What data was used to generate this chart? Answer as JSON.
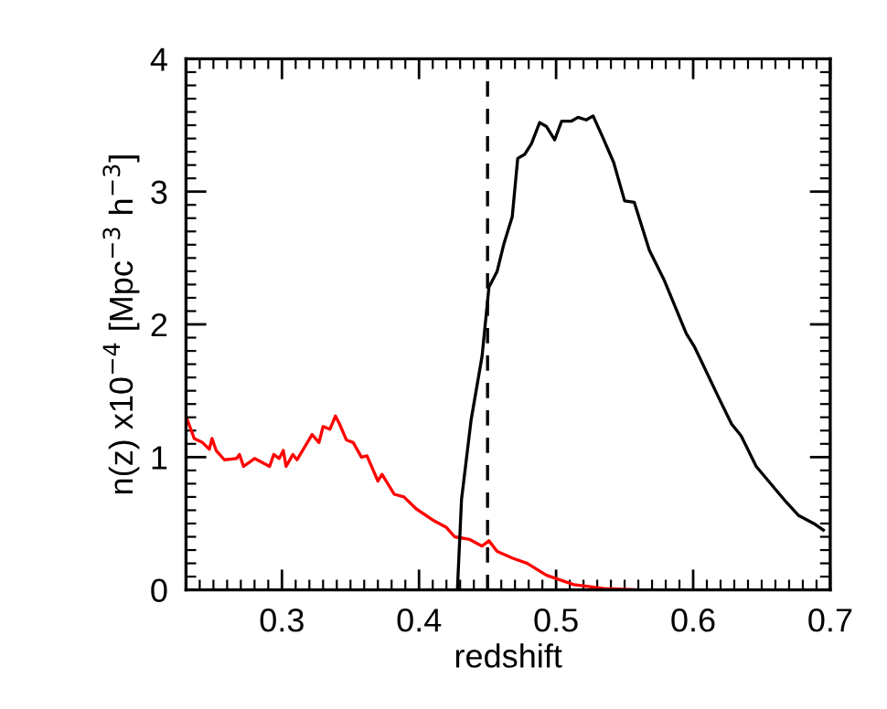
{
  "chart_data": {
    "type": "line",
    "xlabel": "redshift",
    "ylabel": "n(z) x10$^{−4}$ [Mpc$^{−3}$ h$^{−3}$]",
    "xlim": [
      0.23,
      0.7
    ],
    "ylim": [
      0,
      4
    ],
    "xticks": [
      {
        "value": 0.23,
        "label": null
      },
      {
        "value": 0.24,
        "label": null
      },
      {
        "value": 0.25,
        "label": null
      },
      {
        "value": 0.26,
        "label": null
      },
      {
        "value": 0.27,
        "label": null
      },
      {
        "value": 0.28,
        "label": null
      },
      {
        "value": 0.29,
        "label": null
      },
      {
        "value": 0.3,
        "label": "0.3"
      },
      {
        "value": 0.31,
        "label": null
      },
      {
        "value": 0.32,
        "label": null
      },
      {
        "value": 0.33,
        "label": null
      },
      {
        "value": 0.34,
        "label": null
      },
      {
        "value": 0.35,
        "label": null
      },
      {
        "value": 0.36,
        "label": null
      },
      {
        "value": 0.37,
        "label": null
      },
      {
        "value": 0.38,
        "label": null
      },
      {
        "value": 0.39,
        "label": null
      },
      {
        "value": 0.4,
        "label": "0.4"
      },
      {
        "value": 0.41,
        "label": null
      },
      {
        "value": 0.42,
        "label": null
      },
      {
        "value": 0.43,
        "label": null
      },
      {
        "value": 0.44,
        "label": null
      },
      {
        "value": 0.45,
        "label": null
      },
      {
        "value": 0.46,
        "label": null
      },
      {
        "value": 0.47,
        "label": null
      },
      {
        "value": 0.48,
        "label": null
      },
      {
        "value": 0.49,
        "label": null
      },
      {
        "value": 0.5,
        "label": "0.5"
      },
      {
        "value": 0.51,
        "label": null
      },
      {
        "value": 0.52,
        "label": null
      },
      {
        "value": 0.53,
        "label": null
      },
      {
        "value": 0.54,
        "label": null
      },
      {
        "value": 0.55,
        "label": null
      },
      {
        "value": 0.56,
        "label": null
      },
      {
        "value": 0.57,
        "label": null
      },
      {
        "value": 0.58,
        "label": null
      },
      {
        "value": 0.59,
        "label": null
      },
      {
        "value": 0.6,
        "label": "0.6"
      },
      {
        "value": 0.61,
        "label": null
      },
      {
        "value": 0.62,
        "label": null
      },
      {
        "value": 0.63,
        "label": null
      },
      {
        "value": 0.64,
        "label": null
      },
      {
        "value": 0.65,
        "label": null
      },
      {
        "value": 0.66,
        "label": null
      },
      {
        "value": 0.67,
        "label": null
      },
      {
        "value": 0.68,
        "label": null
      },
      {
        "value": 0.69,
        "label": null
      },
      {
        "value": 0.7,
        "label": "0.7"
      }
    ],
    "yticks": [
      0,
      {
        "value": 0.1,
        "label": null
      },
      {
        "value": 0.2,
        "label": null
      },
      {
        "value": 0.3,
        "label": null
      },
      {
        "value": 0.4,
        "label": null
      },
      {
        "value": 0.5,
        "label": null
      },
      {
        "value": 0.6,
        "label": null
      },
      {
        "value": 0.7,
        "label": null
      },
      {
        "value": 0.8,
        "label": null
      },
      {
        "value": 0.9,
        "label": null
      },
      1,
      {
        "value": 1.1,
        "label": null
      },
      {
        "value": 1.2,
        "label": null
      },
      {
        "value": 1.3,
        "label": null
      },
      {
        "value": 1.4,
        "label": null
      },
      {
        "value": 1.5,
        "label": null
      },
      {
        "value": 1.6,
        "label": null
      },
      {
        "value": 1.7,
        "label": null
      },
      {
        "value": 1.8,
        "label": null
      },
      {
        "value": 1.9,
        "label": null
      },
      2,
      {
        "value": 2.1,
        "label": null
      },
      {
        "value": 2.2,
        "label": null
      },
      {
        "value": 2.3,
        "label": null
      },
      {
        "value": 2.4,
        "label": null
      },
      {
        "value": 2.5,
        "label": null
      },
      {
        "value": 2.6,
        "label": null
      },
      {
        "value": 2.7,
        "label": null
      },
      {
        "value": 2.8,
        "label": null
      },
      {
        "value": 2.9,
        "label": null
      },
      3,
      {
        "value": 3.1,
        "label": null
      },
      {
        "value": 3.2,
        "label": null
      },
      {
        "value": 3.3,
        "label": null
      },
      {
        "value": 3.4,
        "label": null
      },
      {
        "value": 3.5,
        "label": null
      },
      {
        "value": 3.6,
        "label": null
      },
      {
        "value": 3.7,
        "label": null
      },
      {
        "value": 3.8,
        "label": null
      },
      {
        "value": 3.9,
        "label": null
      },
      4
    ],
    "grid": false,
    "legend": false,
    "marker": "none",
    "line_style": "solid",
    "ref_lines": [
      {
        "axis": "x",
        "value": 0.45,
        "color": "#000000",
        "line_style": "dashed"
      }
    ],
    "series": [
      {
        "color": "#ff0000",
        "x": [
          0.231,
          0.236,
          0.242,
          0.247,
          0.249,
          0.252,
          0.258,
          0.267,
          0.269,
          0.272,
          0.28,
          0.291,
          0.294,
          0.298,
          0.301,
          0.303,
          0.308,
          0.311,
          0.322,
          0.327,
          0.33,
          0.335,
          0.339,
          0.342,
          0.347,
          0.352,
          0.358,
          0.362,
          0.37,
          0.373,
          0.382,
          0.389,
          0.398,
          0.411,
          0.42,
          0.426,
          0.437,
          0.446,
          0.451,
          0.457,
          0.468,
          0.479,
          0.493,
          0.513,
          0.535,
          0.562,
          0.697
        ],
        "values": [
          1.28,
          1.14,
          1.11,
          1.06,
          1.14,
          1.05,
          0.98,
          0.99,
          1.02,
          0.93,
          0.99,
          0.93,
          1.02,
          0.99,
          1.05,
          0.93,
          1.02,
          0.98,
          1.17,
          1.11,
          1.23,
          1.21,
          1.31,
          1.25,
          1.13,
          1.11,
          1.0,
          1.01,
          0.82,
          0.87,
          0.72,
          0.7,
          0.61,
          0.52,
          0.47,
          0.4,
          0.38,
          0.33,
          0.37,
          0.29,
          0.24,
          0.2,
          0.11,
          0.04,
          0.01,
          0,
          0
        ]
      },
      {
        "color": "#000000",
        "x": [
          0.428,
          0.431,
          0.438,
          0.446,
          0.451,
          0.457,
          0.462,
          0.468,
          0.472,
          0.477,
          0.482,
          0.488,
          0.493,
          0.499,
          0.504,
          0.511,
          0.516,
          0.522,
          0.527,
          0.534,
          0.542,
          0.55,
          0.557,
          0.568,
          0.579,
          0.595,
          0.601,
          0.619,
          0.628,
          0.635,
          0.646,
          0.659,
          0.668,
          0.677,
          0.688,
          0.695
        ],
        "values": [
          0,
          0.68,
          1.28,
          1.76,
          2.28,
          2.4,
          2.61,
          2.81,
          3.25,
          3.28,
          3.36,
          3.52,
          3.49,
          3.39,
          3.53,
          3.53,
          3.56,
          3.54,
          3.57,
          3.41,
          3.22,
          2.93,
          2.92,
          2.56,
          2.33,
          1.93,
          1.83,
          1.44,
          1.25,
          1.16,
          0.93,
          0.77,
          0.66,
          0.56,
          0.5,
          0.45
        ]
      }
    ]
  }
}
